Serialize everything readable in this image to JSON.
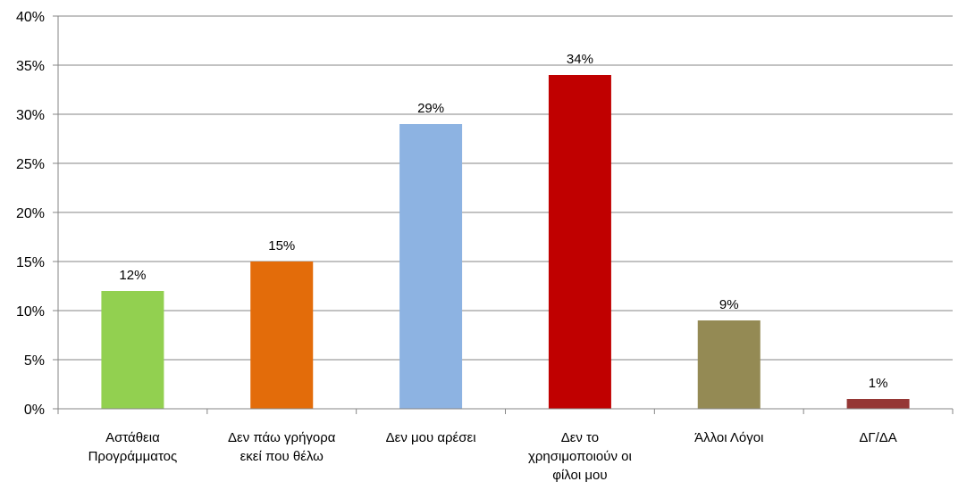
{
  "chart_data": {
    "type": "bar",
    "title": "",
    "xlabel": "",
    "ylabel": "",
    "ylim": [
      0,
      40
    ],
    "y_ticks": [
      "0%",
      "5%",
      "10%",
      "15%",
      "20%",
      "25%",
      "30%",
      "35%",
      "40%"
    ],
    "grid": true,
    "legend": "none",
    "categories": [
      [
        "Αστάθεια",
        "Προγράμματος"
      ],
      [
        "Δεν πάω γρήγορα",
        "εκεί που θέλω"
      ],
      [
        "Δεν μου αρέσει"
      ],
      [
        "Δεν το",
        "χρησιμοποιούν οι",
        "φίλοι μου"
      ],
      [
        "Άλλοι Λόγοι"
      ],
      [
        "ΔΓ/ΔΑ"
      ]
    ],
    "values": [
      12,
      15,
      29,
      34,
      9,
      1
    ],
    "data_labels": [
      "12%",
      "15%",
      "29%",
      "34%",
      "9%",
      "1%"
    ],
    "colors": [
      "#92d050",
      "#e36c0a",
      "#8db3e2",
      "#c00000",
      "#948a54",
      "#953735"
    ]
  }
}
